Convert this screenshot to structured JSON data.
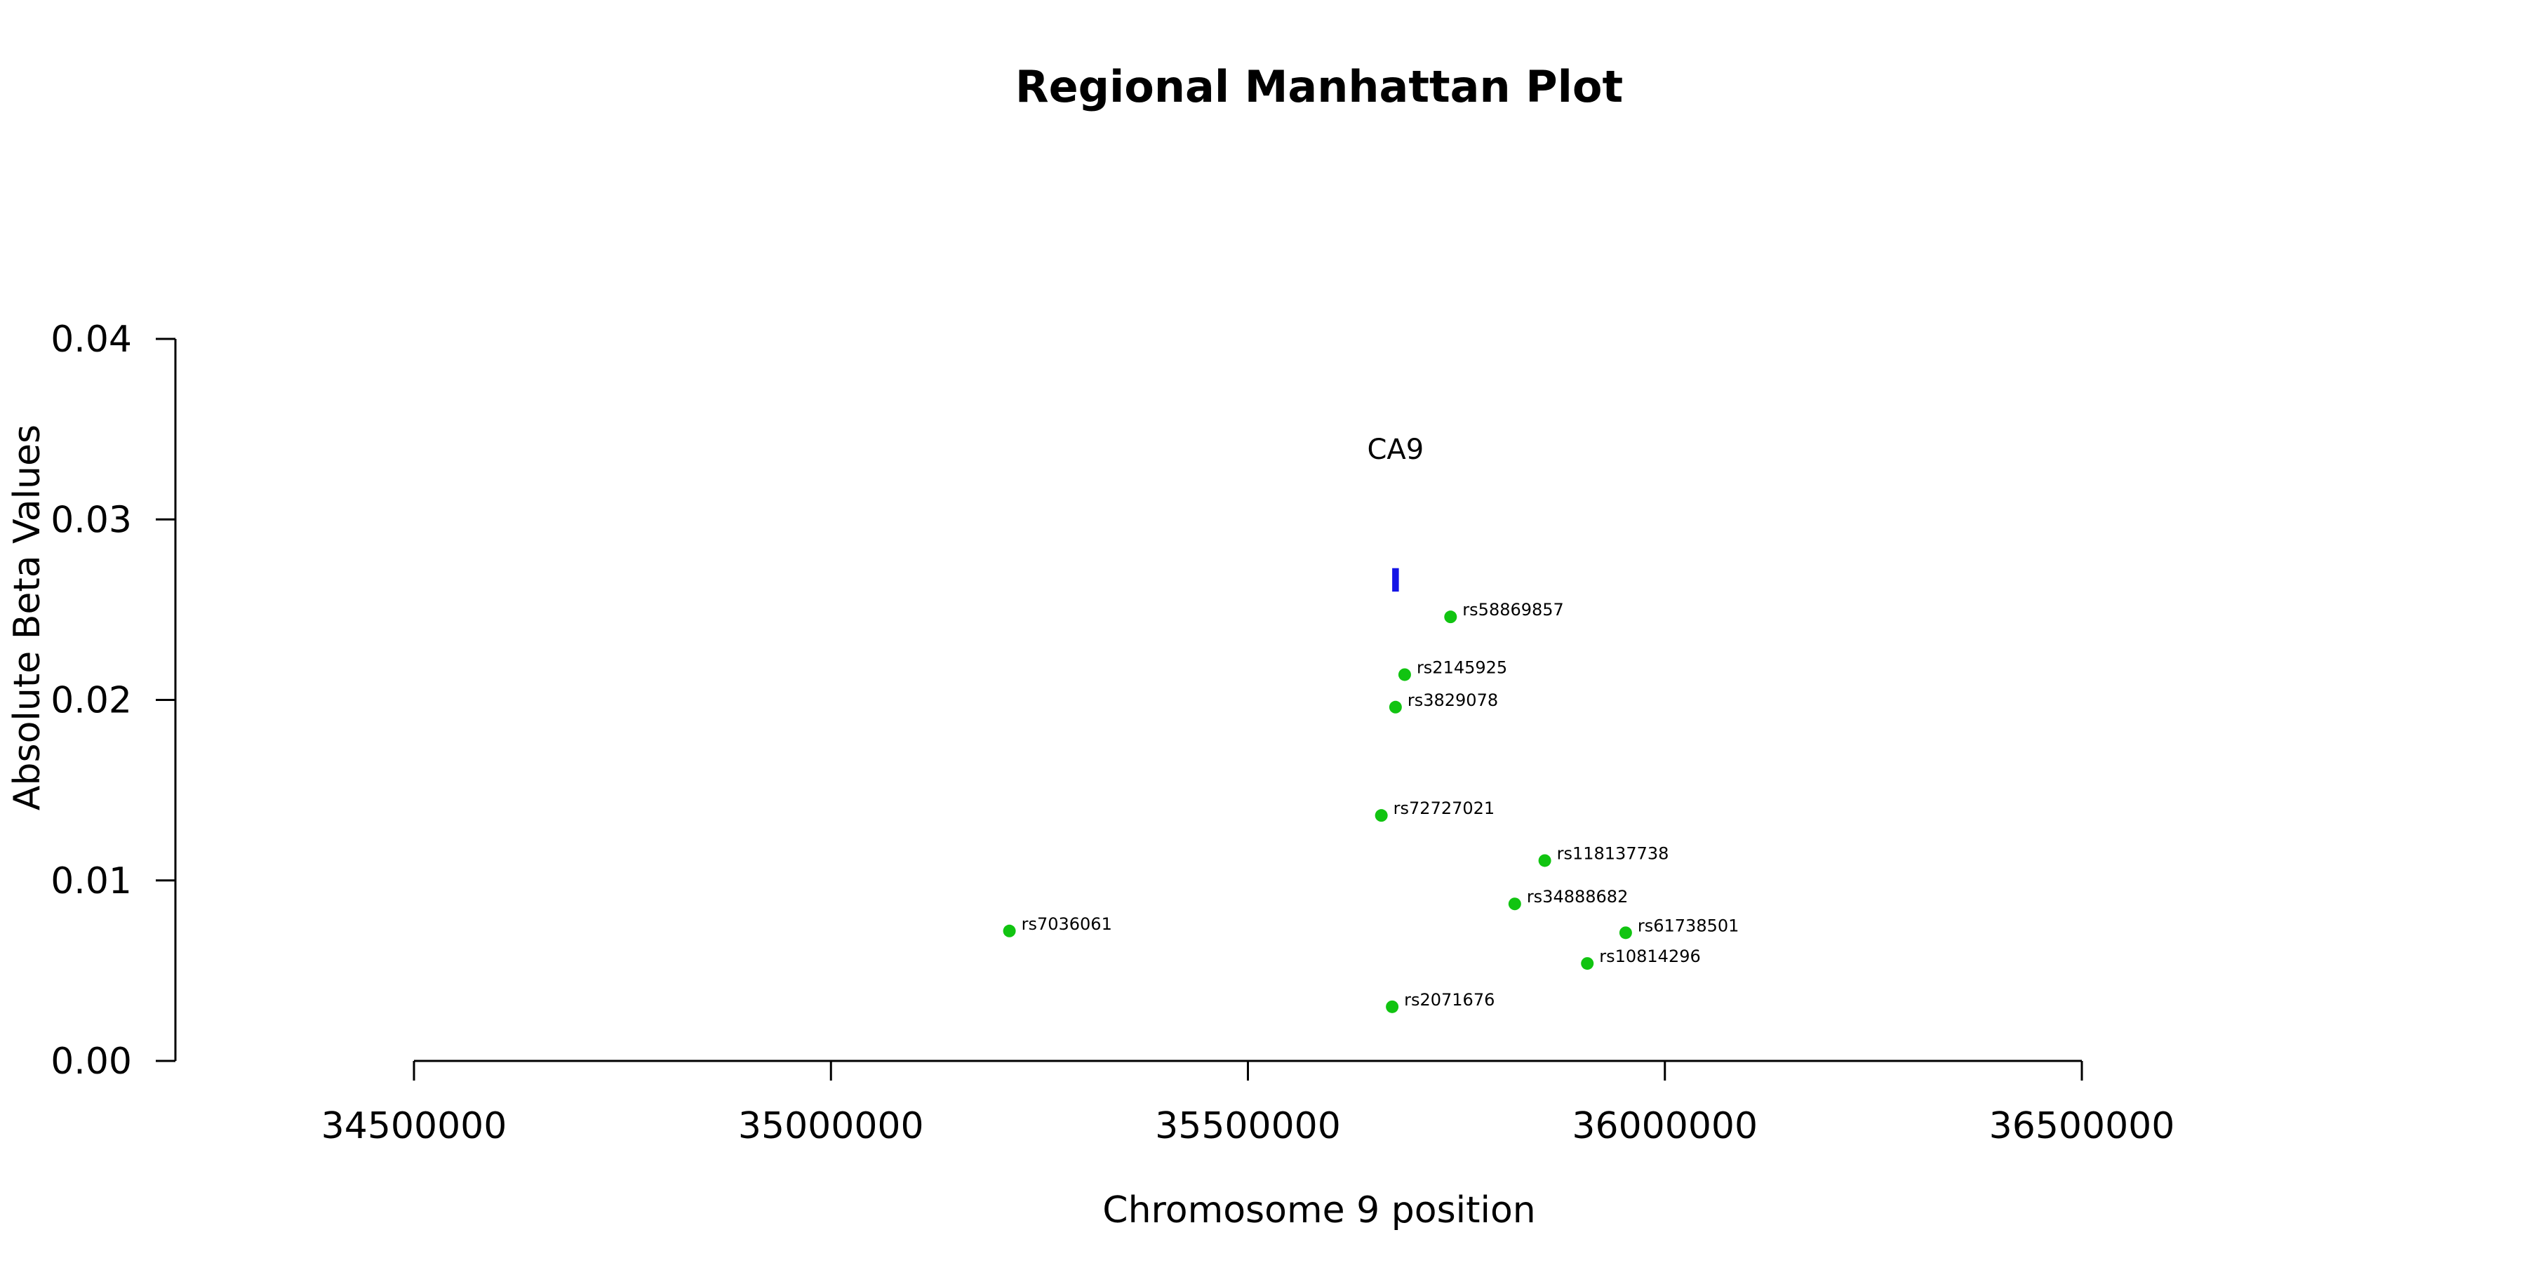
{
  "chart_data": {
    "type": "scatter",
    "title": "Regional Manhattan Plot",
    "xlabel": "Chromosome 9 position",
    "ylabel": "Absolute Beta Values",
    "xlim": [
      34500000,
      36500000
    ],
    "ylim": [
      0,
      0.04
    ],
    "xticks": [
      34500000,
      35000000,
      35500000,
      36000000,
      36500000
    ],
    "xtick_labels": [
      "34500000",
      "35000000",
      "35500000",
      "36000000",
      "36500000"
    ],
    "yticks": [
      0.0,
      0.01,
      0.02,
      0.03,
      0.04
    ],
    "ytick_labels": [
      "0.00",
      "0.01",
      "0.02",
      "0.03",
      "0.04"
    ],
    "grid": false,
    "colors": {
      "snp": "#11c411",
      "gene": "#1414e6",
      "axis": "#000000"
    },
    "points": [
      {
        "label": "rs58869857",
        "x": 35743000,
        "y": 0.0246
      },
      {
        "label": "rs2145925",
        "x": 35688000,
        "y": 0.0214
      },
      {
        "label": "rs3829078",
        "x": 35677000,
        "y": 0.0196
      },
      {
        "label": "rs72727021",
        "x": 35660000,
        "y": 0.0136
      },
      {
        "label": "rs118137738",
        "x": 35856000,
        "y": 0.0111
      },
      {
        "label": "rs34888682",
        "x": 35820000,
        "y": 0.0087
      },
      {
        "label": "rs7036061",
        "x": 35214000,
        "y": 0.0072
      },
      {
        "label": "rs61738501",
        "x": 35953000,
        "y": 0.0071
      },
      {
        "label": "rs10814296",
        "x": 35907000,
        "y": 0.0054
      },
      {
        "label": "rs2071676",
        "x": 35673000,
        "y": 0.003
      }
    ],
    "genes": [
      {
        "name": "CA9",
        "start": 35673000,
        "end": 35681000,
        "y_low": 0.026,
        "y_high": 0.0273,
        "label_y": 0.0339
      }
    ]
  }
}
